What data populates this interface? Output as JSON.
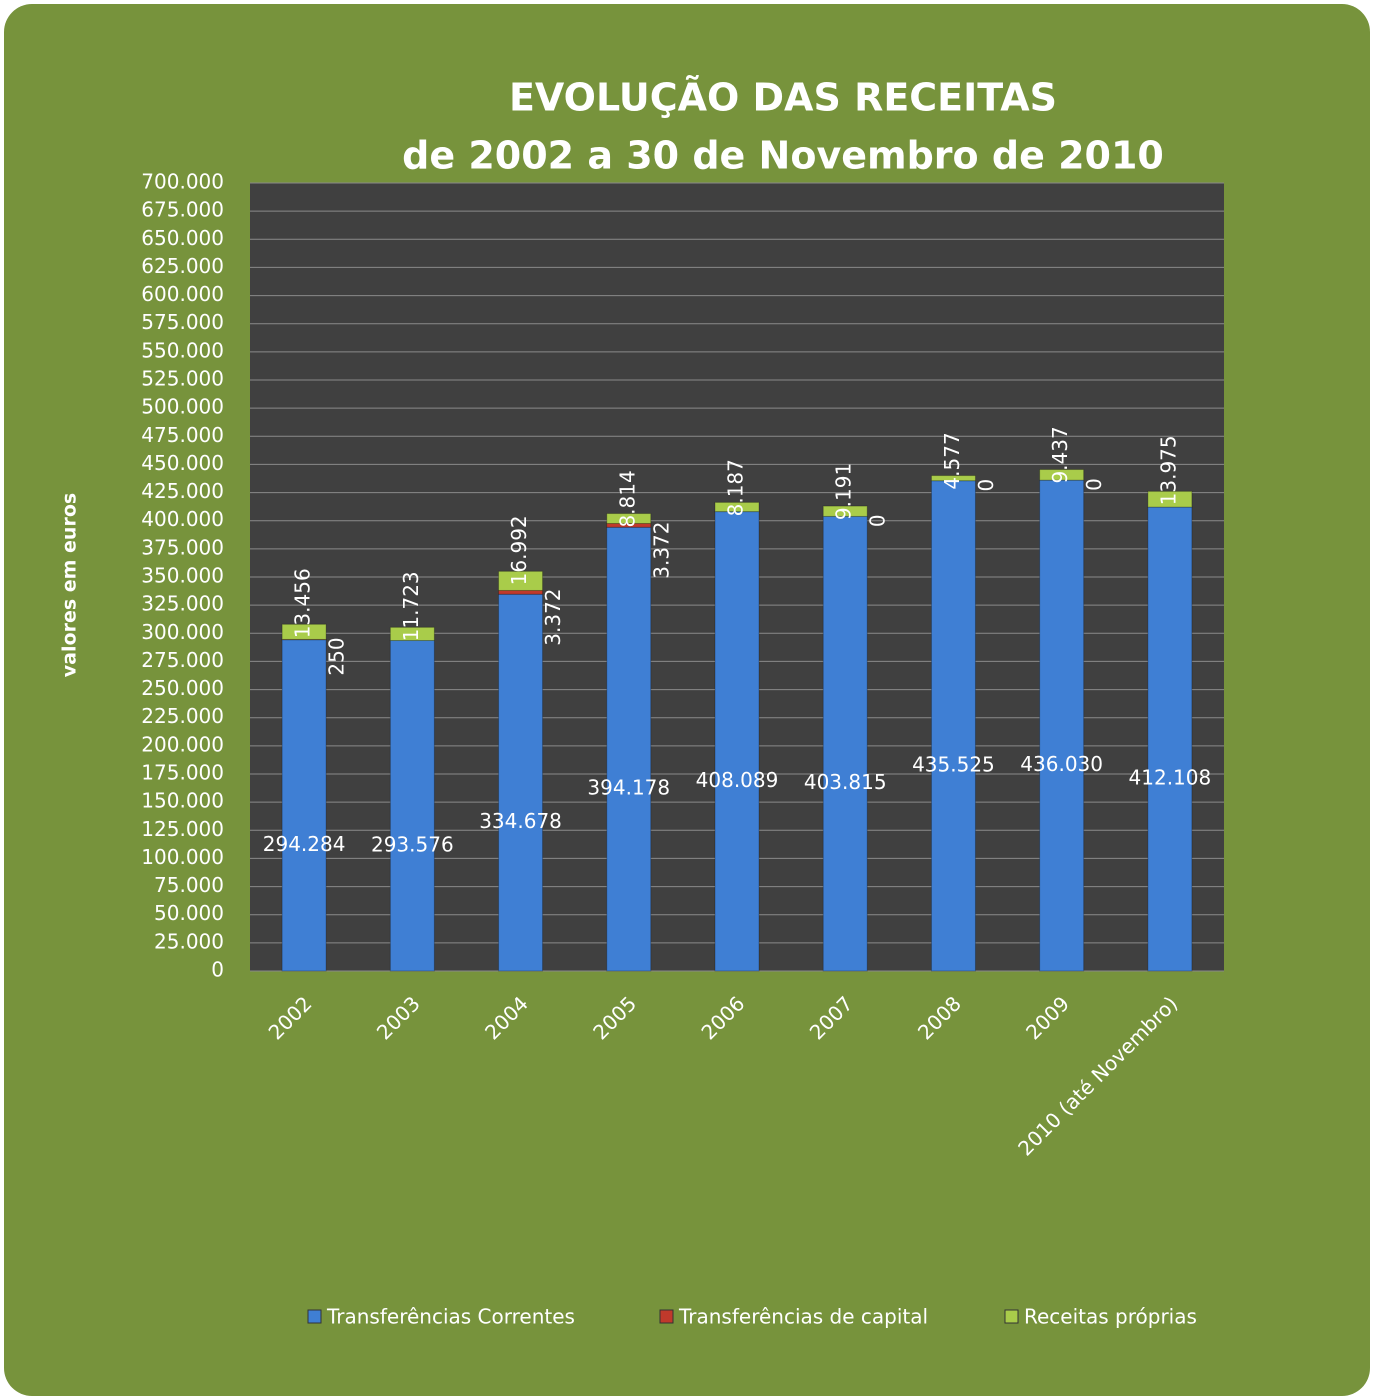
{
  "chart_data": {
    "type": "stacked_bar",
    "title": "EVOLUÇÃO DAS RECEITAS",
    "subtitle": "de 2002 a 30 de Novembro de 2010",
    "ylabel": "valores em euros",
    "categories": [
      "2002",
      "2003",
      "2004",
      "2005",
      "2006",
      "2007",
      "2008",
      "2009",
      "2010 (até Novembro)"
    ],
    "series": [
      {
        "name": "Transferências Correntes",
        "color": "#3f7fd4",
        "values": [
          294284,
          293576,
          334678,
          394178,
          408089,
          403815,
          435525,
          436030,
          412108
        ],
        "value_labels": [
          "294.284",
          "293.576",
          "334.678",
          "394.178",
          "408.089",
          "403.815",
          "435.525",
          "436.030",
          "412.108"
        ]
      },
      {
        "name": "Transferências de capital",
        "color": "#c0392b",
        "values": [
          250,
          null,
          3372,
          3372,
          null,
          0,
          0,
          0,
          null
        ],
        "value_labels": [
          "250",
          null,
          "3.372",
          "3.372",
          null,
          "0",
          "0",
          "0",
          null
        ]
      },
      {
        "name": "Receitas próprias",
        "color": "#a9cc4a",
        "values": [
          13456,
          11723,
          16992,
          8814,
          8187,
          9191,
          4577,
          9437,
          13975
        ],
        "value_labels": [
          "13.456",
          "11.723",
          "16.992",
          "8.814",
          "8.187",
          "9.191",
          "4.577",
          "9.437",
          "13.975"
        ]
      }
    ],
    "ylim": [
      0,
      700000
    ],
    "yticks": [
      0,
      {
        "value": 25000,
        "label": "25.000"
      },
      {
        "value": 50000,
        "label": "50.000"
      },
      {
        "value": 75000,
        "label": "75.000"
      },
      {
        "value": 100000,
        "label": "100.000"
      },
      {
        "value": 125000,
        "label": "125.000"
      },
      {
        "value": 150000,
        "label": "150.000"
      },
      {
        "value": 175000,
        "label": "175.000"
      },
      {
        "value": 200000,
        "label": "200.000"
      },
      {
        "value": 225000,
        "label": "225.000"
      },
      {
        "value": 250000,
        "label": "250.000"
      },
      {
        "value": 275000,
        "label": "275.000"
      },
      {
        "value": 300000,
        "label": "300.000"
      },
      {
        "value": 325000,
        "label": "325.000"
      },
      {
        "value": 350000,
        "label": "350.000"
      },
      {
        "value": 375000,
        "label": "375.000"
      },
      {
        "value": 400000,
        "label": "400.000"
      },
      {
        "value": 425000,
        "label": "425.000"
      },
      {
        "value": 450000,
        "label": "450.000"
      },
      {
        "value": 475000,
        "label": "475.000"
      },
      {
        "value": 500000,
        "label": "500.000"
      },
      {
        "value": 525000,
        "label": "525.000"
      },
      {
        "value": 550000,
        "label": "550.000"
      },
      {
        "value": 575000,
        "label": "575.000"
      },
      {
        "value": 600000,
        "label": "600.000"
      },
      {
        "value": 625000,
        "label": "625.000"
      },
      {
        "value": 650000,
        "label": "650.000"
      },
      {
        "value": 675000,
        "label": "675.000"
      },
      {
        "value": 700000,
        "label": "700.000"
      }
    ],
    "grid": true,
    "legend": "bottom"
  }
}
